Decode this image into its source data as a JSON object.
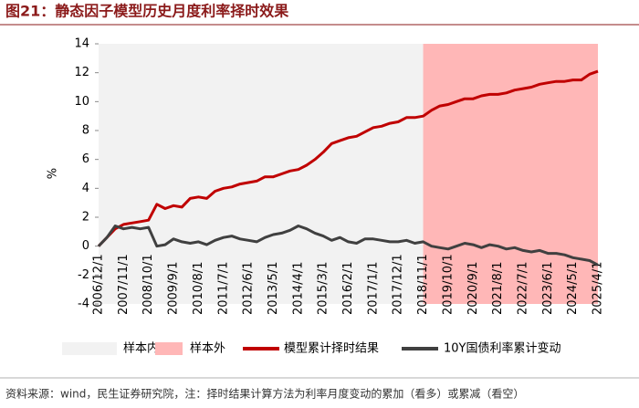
{
  "chart_data": {
    "type": "line",
    "title": "图21：静态因子模型历史月度利率择时效果",
    "y_label": "%",
    "source": "资料来源：wind，民生证券研究院，注：择时结果计算方法为利率月度变动的累加（看多）或累减（看空）",
    "ylim": [
      -4,
      14
    ],
    "yticks": [
      -4,
      -2,
      0,
      2,
      4,
      6,
      8,
      10,
      12,
      14
    ],
    "grid": false,
    "categories": [
      "2006/12/1",
      null,
      null,
      "2007/11/1",
      null,
      null,
      "2008/10/1",
      null,
      null,
      "2009/9/1",
      null,
      null,
      "2010/8/1",
      null,
      null,
      "2011/7/1",
      null,
      null,
      "2012/6/1",
      null,
      null,
      "2013/5/1",
      null,
      null,
      "2014/4/1",
      null,
      null,
      "2015/3/1",
      null,
      null,
      "2016/2/1",
      null,
      null,
      "2017/1/1",
      null,
      null,
      "2017/12/1",
      null,
      null,
      "2018/11/1",
      null,
      null,
      "2019/10/1",
      null,
      null,
      "2020/9/1",
      null,
      null,
      "2021/8/1",
      null,
      null,
      "2022/7/1",
      null,
      null,
      "2023/6/1",
      null,
      null,
      "2024/5/1",
      null,
      null,
      "2025/4/1"
    ],
    "bands": [
      {
        "name": "样本内",
        "color": "#f2f2f2",
        "from": "2006/12/1",
        "to": "2018/11/1"
      },
      {
        "name": "样本外",
        "color": "#ffb7b7",
        "from": "2018/11/1",
        "to": "2025/4/1"
      }
    ],
    "series": [
      {
        "name": "模型累计择时结果",
        "color": "#c00000",
        "values": [
          0,
          0.6,
          1.2,
          1.5,
          1.6,
          1.7,
          1.8,
          2.9,
          2.6,
          2.8,
          2.7,
          3.3,
          3.4,
          3.3,
          3.8,
          4.0,
          4.1,
          4.3,
          4.4,
          4.5,
          4.8,
          4.8,
          5.0,
          5.2,
          5.3,
          5.6,
          6.0,
          6.5,
          7.1,
          7.3,
          7.5,
          7.6,
          7.9,
          8.2,
          8.3,
          8.5,
          8.6,
          8.9,
          8.9,
          9.0,
          9.4,
          9.7,
          9.8,
          10.0,
          10.2,
          10.2,
          10.4,
          10.5,
          10.5,
          10.6,
          10.8,
          10.9,
          11.0,
          11.2,
          11.3,
          11.4,
          11.4,
          11.5,
          11.5,
          11.9,
          12.1
        ]
      },
      {
        "name": "10Y国债利率累计变动",
        "color": "#404040",
        "values": [
          0,
          0.6,
          1.4,
          1.2,
          1.3,
          1.2,
          1.3,
          0,
          0.1,
          0.5,
          0.3,
          0.2,
          0.3,
          0.1,
          0.4,
          0.6,
          0.7,
          0.5,
          0.4,
          0.3,
          0.6,
          0.8,
          0.9,
          1.1,
          1.4,
          1.2,
          0.9,
          0.7,
          0.4,
          0.6,
          0.3,
          0.2,
          0.5,
          0.5,
          0.4,
          0.3,
          0.3,
          0.4,
          0.2,
          0.3,
          0,
          -0.1,
          -0.2,
          0,
          0.2,
          0.1,
          -0.1,
          0.1,
          0,
          -0.2,
          -0.1,
          -0.3,
          -0.4,
          -0.3,
          -0.5,
          -0.5,
          -0.6,
          -0.8,
          -0.9,
          -1.0,
          -1.3
        ]
      }
    ]
  }
}
